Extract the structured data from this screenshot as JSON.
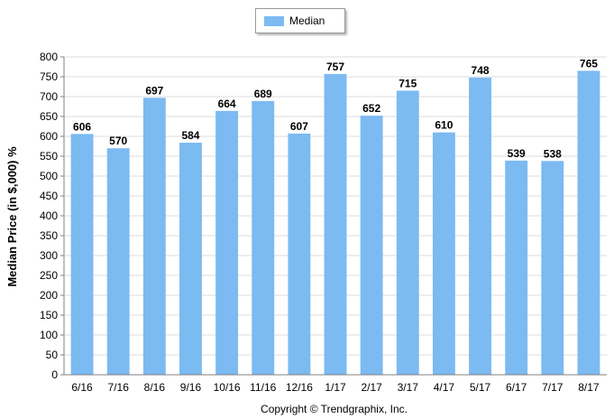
{
  "chart_data": {
    "type": "bar",
    "ylabel": "Median Price (in $,000) %",
    "ylim": [
      0,
      800
    ],
    "yticks": [
      0,
      50,
      100,
      150,
      200,
      250,
      300,
      350,
      400,
      450,
      500,
      550,
      600,
      650,
      700,
      750,
      800
    ],
    "categories": [
      "6/16",
      "7/16",
      "8/16",
      "9/16",
      "10/16",
      "11/16",
      "12/16",
      "1/17",
      "2/17",
      "3/17",
      "4/17",
      "5/17",
      "6/17",
      "7/17",
      "8/17"
    ],
    "series": [
      {
        "name": "Median",
        "values": [
          606,
          570,
          697,
          584,
          664,
          689,
          607,
          757,
          652,
          715,
          610,
          748,
          539,
          538,
          765
        ]
      }
    ],
    "grid": true,
    "legend": "top-center",
    "bar_color": "#7cbaf2",
    "footer": "Copyright © Trendgraphix, Inc."
  }
}
